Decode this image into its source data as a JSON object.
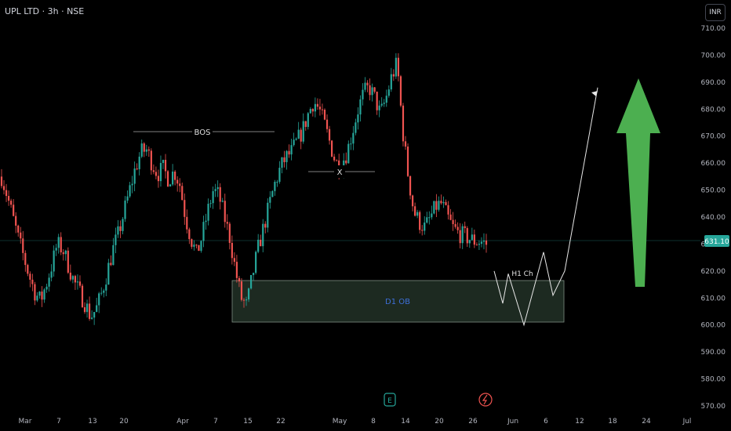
{
  "header": {
    "symbol_line": "UPL LTD · 3h · NSE",
    "currency_button": "INR"
  },
  "price_axis": {
    "ticks": [
      "710.00",
      "700.00",
      "690.00",
      "680.00",
      "670.00",
      "660.00",
      "650.00",
      "640.00",
      "630.00",
      "620.00",
      "610.00",
      "600.00",
      "590.00",
      "580.00",
      "570.00"
    ],
    "last_price_label": "631.10"
  },
  "time_axis": {
    "ticks": [
      "Mar",
      "7",
      "13",
      "20",
      "Apr",
      "7",
      "15",
      "22",
      "May",
      "8",
      "14",
      "20",
      "26",
      "Jun",
      "6",
      "12",
      "18",
      "24",
      "Jul"
    ]
  },
  "annotations": {
    "bos": "BOS",
    "x_mark": "X",
    "h1_label": "H1 Ch",
    "zone_label": "D1 OB"
  },
  "colors": {
    "up": "#26a69a",
    "down": "#ef5350",
    "bull_green": "#4caf50",
    "zone_fill": "#1e2b22",
    "grid": "#1a1a1a"
  },
  "chart_data": {
    "type": "candlestick",
    "title": "UPL LTD · 3h · NSE",
    "currency": "INR",
    "ylim": [
      568,
      712
    ],
    "last_price": 631.1,
    "x_ticks": [
      "Mar",
      "7",
      "13",
      "20",
      "Apr",
      "7",
      "15",
      "22",
      "May",
      "8",
      "14",
      "20",
      "26",
      "Jun",
      "6",
      "12",
      "18",
      "24",
      "Jul"
    ],
    "price_path": [
      655,
      648,
      640,
      632,
      625,
      618,
      612,
      609,
      615,
      622,
      630,
      628,
      622,
      616,
      612,
      608,
      603,
      606,
      612,
      620,
      628,
      634,
      642,
      650,
      658,
      664,
      665,
      660,
      656,
      658,
      654,
      657,
      652,
      640,
      632,
      626,
      633,
      642,
      650,
      648,
      640,
      632,
      620,
      610,
      607,
      618,
      628,
      636,
      644,
      652,
      658,
      662,
      664,
      668,
      672,
      678,
      683,
      680,
      674,
      667,
      660,
      660,
      664,
      672,
      680,
      686,
      688,
      684,
      678,
      684,
      692,
      697,
      672,
      655,
      642,
      638,
      636,
      640,
      644,
      645,
      640,
      636,
      634,
      633,
      632,
      631,
      631,
      630
    ],
    "projection": [
      [
        630,
        620
      ],
      [
        641,
        608
      ],
      [
        648,
        619
      ],
      [
        668,
        600
      ],
      [
        693,
        627
      ],
      [
        705,
        611
      ],
      [
        720,
        620
      ],
      [
        762,
        688
      ]
    ],
    "zone": {
      "label": "D1 OB",
      "top": 616,
      "bottom": 601
    },
    "annotations": [
      "BOS",
      "X",
      "H1 Ch"
    ]
  }
}
